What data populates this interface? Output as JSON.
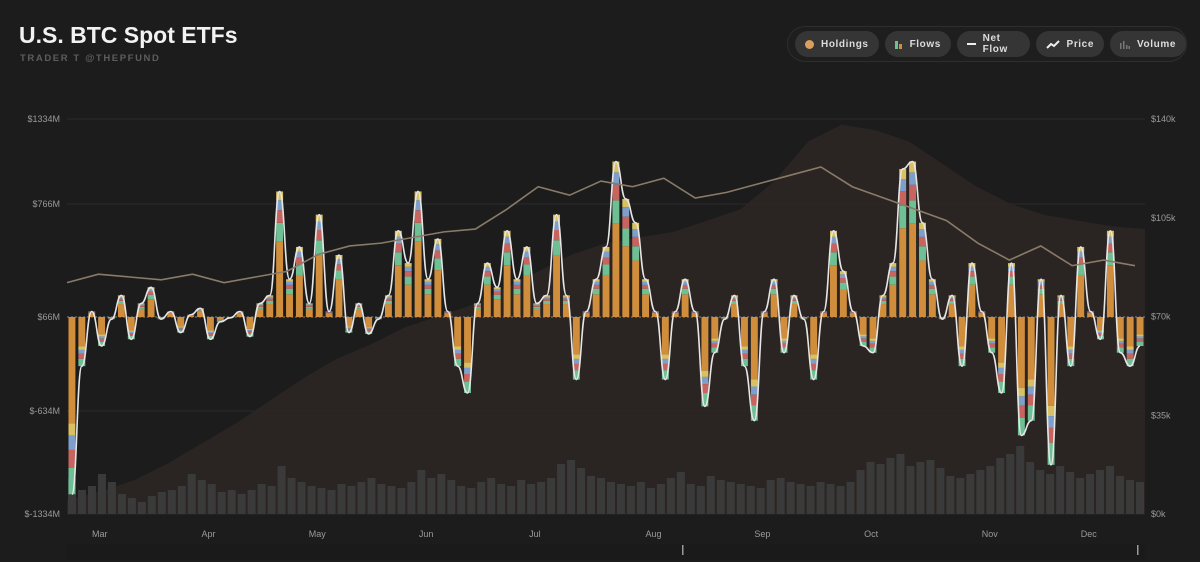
{
  "header": {
    "title": "U.S. BTC Spot ETFs",
    "subtitle": "TRADER T @THEPFUND"
  },
  "legend": [
    {
      "label": "Holdings",
      "icon": "dot-icon"
    },
    {
      "label": "Flows",
      "icon": "stacked-bar-icon"
    },
    {
      "label": "Net Flow",
      "icon": "line-dash-icon"
    },
    {
      "label": "Price",
      "icon": "trend-line-icon"
    },
    {
      "label": "Volume",
      "icon": "volume-bars-icon"
    }
  ],
  "colors": {
    "flow_orange": "#d08d3c",
    "flow_green": "#6fbf94",
    "flow_red": "#c8645f",
    "flow_blue": "#7d9fc9",
    "flow_yellow": "#d9c163",
    "net_line": "#e6e6e6",
    "price_line": "#8a7a68",
    "holdings_fill": "#2c2723",
    "volume": "#3a3a3a"
  },
  "chart_data": {
    "type": "bar",
    "title": "U.S. BTC Spot ETFs",
    "left_axis": {
      "label": "Net Flow",
      "ticks": [
        1334,
        766,
        66,
        -634,
        -1334
      ],
      "tick_labels": [
        "$1334M",
        "$766M",
        "$66M",
        "$-634M",
        "$-1334M"
      ]
    },
    "right_axis": {
      "label": "Price",
      "range": [
        0,
        140
      ],
      "ticks": [
        140,
        105,
        70,
        35,
        0
      ],
      "tick_labels": [
        "$140k",
        "$105k",
        "$70k",
        "$35k",
        "$0k"
      ]
    },
    "month_ticks": [
      {
        "label": "Mar",
        "index": 2
      },
      {
        "label": "Apr",
        "index": 13
      },
      {
        "label": "May",
        "index": 24
      },
      {
        "label": "Jun",
        "index": 35
      },
      {
        "label": "Jul",
        "index": 46
      },
      {
        "label": "Aug",
        "index": 58
      },
      {
        "label": "Sep",
        "index": 69
      },
      {
        "label": "Oct",
        "index": 80
      },
      {
        "label": "Nov",
        "index": 92
      },
      {
        "label": "Dec",
        "index": 102
      }
    ],
    "net_flow": [
      -1200,
      -300,
      100,
      -150,
      50,
      200,
      -100,
      150,
      250,
      50,
      100,
      -50,
      80,
      120,
      -100,
      30,
      60,
      100,
      -80,
      150,
      200,
      850,
      300,
      500,
      150,
      700,
      100,
      450,
      -50,
      150,
      -60,
      50,
      200,
      600,
      400,
      850,
      300,
      550,
      100,
      -300,
      -500,
      150,
      400,
      250,
      600,
      300,
      500,
      150,
      200,
      700,
      200,
      -400,
      100,
      300,
      500,
      1050,
      800,
      650,
      300,
      100,
      -400,
      100,
      300,
      100,
      -600,
      -200,
      50,
      200,
      -300,
      -700,
      100,
      300,
      -200,
      200,
      50,
      -400,
      100,
      600,
      350,
      100,
      -150,
      -200,
      200,
      400,
      1000,
      1050,
      650,
      300,
      50,
      200,
      -300,
      400,
      100,
      -200,
      -500,
      400,
      -800,
      -700,
      300,
      -1000,
      200,
      -300,
      500,
      100,
      -100,
      600,
      -200,
      -300,
      -150
    ],
    "price": [
      82,
      85,
      84,
      83,
      85,
      82,
      84,
      86,
      92,
      95,
      96,
      98,
      100,
      101,
      108,
      116,
      113,
      118,
      116,
      119,
      112,
      114,
      117,
      120,
      123,
      116,
      112,
      108,
      104,
      96,
      90,
      95,
      88,
      90,
      88
    ],
    "holdings": [
      5,
      8,
      12,
      18,
      25,
      32,
      40,
      48,
      55,
      60,
      66,
      70,
      74,
      80,
      86,
      92,
      96,
      98,
      100,
      104,
      108,
      118,
      132,
      138,
      136,
      132,
      124,
      116,
      110,
      106,
      104,
      102,
      101
    ],
    "volume": [
      18,
      12,
      14,
      20,
      16,
      10,
      8,
      6,
      9,
      11,
      12,
      14,
      20,
      17,
      15,
      11,
      12,
      10,
      12,
      15,
      14,
      24,
      18,
      16,
      14,
      13,
      12,
      15,
      14,
      16,
      18,
      15,
      14,
      13,
      16,
      22,
      18,
      20,
      17,
      14,
      13,
      16,
      18,
      15,
      14,
      17,
      15,
      16,
      18,
      25,
      27,
      23,
      19,
      18,
      16,
      15,
      14,
      16,
      13,
      15,
      18,
      21,
      15,
      14,
      19,
      17,
      16,
      15,
      14,
      13,
      17,
      18,
      16,
      15,
      14,
      16,
      15,
      14,
      16,
      22,
      26,
      25,
      28,
      30,
      24,
      26,
      27,
      23,
      19,
      18,
      20,
      22,
      24,
      28,
      30,
      34,
      26,
      22,
      20,
      24,
      21,
      18,
      20,
      22,
      24,
      19,
      17,
      16
    ]
  },
  "scrollbar": {
    "label": "range-navigator"
  }
}
